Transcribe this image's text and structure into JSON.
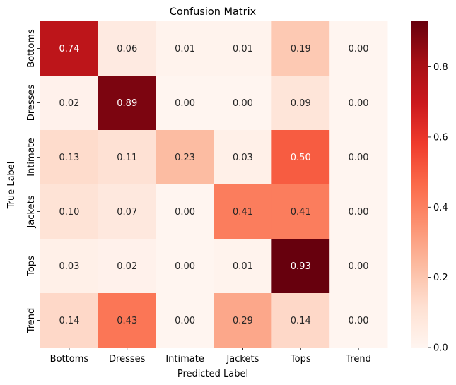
{
  "chart_data": {
    "type": "heatmap",
    "title": "Confusion Matrix",
    "xlabel": "Predicted Label",
    "ylabel": "True Label",
    "x_categories": [
      "Bottoms",
      "Dresses",
      "Intimate",
      "Jackets",
      "Tops",
      "Trend"
    ],
    "y_categories": [
      "Bottoms",
      "Dresses",
      "Intimate",
      "Jackets",
      "Tops",
      "Trend"
    ],
    "values": [
      [
        0.74,
        0.06,
        0.01,
        0.01,
        0.19,
        0.0
      ],
      [
        0.02,
        0.89,
        0.0,
        0.0,
        0.09,
        0.0
      ],
      [
        0.13,
        0.11,
        0.23,
        0.03,
        0.5,
        0.0
      ],
      [
        0.1,
        0.07,
        0.0,
        0.41,
        0.41,
        0.0
      ],
      [
        0.03,
        0.02,
        0.0,
        0.01,
        0.93,
        0.0
      ],
      [
        0.14,
        0.43,
        0.0,
        0.29,
        0.14,
        0.0
      ]
    ],
    "value_format": "0.00",
    "colormap": "Reds",
    "color_range": [
      0,
      0.93
    ],
    "colorbar_ticks": [
      "0.0",
      "0.2",
      "0.4",
      "0.6",
      "0.8"
    ],
    "colorbar_tick_values": [
      0.0,
      0.2,
      0.4,
      0.6,
      0.8
    ],
    "grid": false
  }
}
